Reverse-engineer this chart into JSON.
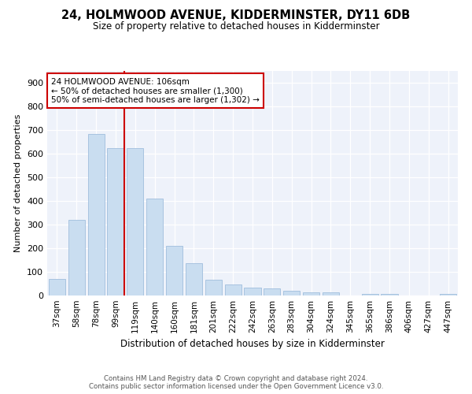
{
  "title": "24, HOLMWOOD AVENUE, KIDDERMINSTER, DY11 6DB",
  "subtitle": "Size of property relative to detached houses in Kidderminster",
  "xlabel": "Distribution of detached houses by size in Kidderminster",
  "ylabel": "Number of detached properties",
  "categories": [
    "37sqm",
    "58sqm",
    "78sqm",
    "99sqm",
    "119sqm",
    "140sqm",
    "160sqm",
    "181sqm",
    "201sqm",
    "222sqm",
    "242sqm",
    "263sqm",
    "283sqm",
    "304sqm",
    "324sqm",
    "345sqm",
    "365sqm",
    "386sqm",
    "406sqm",
    "427sqm",
    "447sqm"
  ],
  "values": [
    70,
    320,
    685,
    625,
    625,
    410,
    210,
    138,
    68,
    47,
    35,
    30,
    20,
    12,
    12,
    0,
    8,
    8,
    0,
    0,
    8
  ],
  "bar_color": "#c9ddf0",
  "bar_edge_color": "#a0bedd",
  "vline_x_index": 3,
  "vline_color": "#cc0000",
  "property_label": "24 HOLMWOOD AVENUE: 106sqm",
  "annotation_line1": "← 50% of detached houses are smaller (1,300)",
  "annotation_line2": "50% of semi-detached houses are larger (1,302) →",
  "annotation_box_color": "#cc0000",
  "ylim": [
    0,
    950
  ],
  "yticks": [
    0,
    100,
    200,
    300,
    400,
    500,
    600,
    700,
    800,
    900
  ],
  "footer_line1": "Contains HM Land Registry data © Crown copyright and database right 2024.",
  "footer_line2": "Contains public sector information licensed under the Open Government Licence v3.0.",
  "bg_color": "#eef2fa",
  "fig_bg_color": "#ffffff",
  "title_fontsize": 10.5,
  "subtitle_fontsize": 8.5,
  "annotation_fontsize": 7.5,
  "ylabel_fontsize": 8,
  "xlabel_fontsize": 8.5
}
